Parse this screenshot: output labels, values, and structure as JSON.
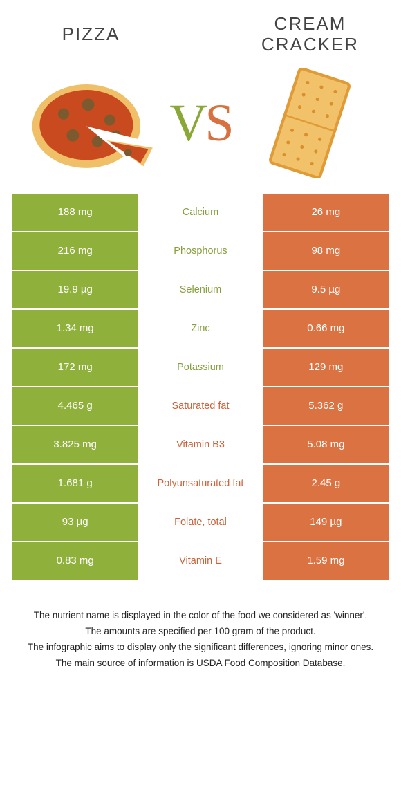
{
  "colors": {
    "left": "#8fb03b",
    "right": "#db7242",
    "leftText": "#859f3c",
    "rightText": "#c9633a",
    "bodyText": "#444444",
    "pizzaCrust": "#f0c069",
    "pizzaSauce": "#c94a1f",
    "pizzaTop": "#7a5a2e",
    "crackerFill": "#f1c26a",
    "crackerEdge": "#e09a36",
    "crackerHole": "#d98f2e"
  },
  "header": {
    "left": "PIZZA",
    "right": "CREAM\nCRACKER",
    "vs_v": "V",
    "vs_s": "S"
  },
  "rows": [
    {
      "nutrient": "Calcium",
      "left": "188 mg",
      "right": "26 mg",
      "winner": "left"
    },
    {
      "nutrient": "Phosphorus",
      "left": "216 mg",
      "right": "98 mg",
      "winner": "left"
    },
    {
      "nutrient": "Selenium",
      "left": "19.9 µg",
      "right": "9.5 µg",
      "winner": "left"
    },
    {
      "nutrient": "Zinc",
      "left": "1.34 mg",
      "right": "0.66 mg",
      "winner": "left"
    },
    {
      "nutrient": "Potassium",
      "left": "172 mg",
      "right": "129 mg",
      "winner": "left"
    },
    {
      "nutrient": "Saturated fat",
      "left": "4.465 g",
      "right": "5.362 g",
      "winner": "right"
    },
    {
      "nutrient": "Vitamin B3",
      "left": "3.825 mg",
      "right": "5.08 mg",
      "winner": "right"
    },
    {
      "nutrient": "Polyunsaturated fat",
      "left": "1.681 g",
      "right": "2.45 g",
      "winner": "right"
    },
    {
      "nutrient": "Folate, total",
      "left": "93 µg",
      "right": "149 µg",
      "winner": "right"
    },
    {
      "nutrient": "Vitamin E",
      "left": "0.83 mg",
      "right": "1.59 mg",
      "winner": "right"
    }
  ],
  "footer": [
    "The nutrient name is displayed in the color of the food we considered as 'winner'.",
    "The amounts are specified per 100 gram of the product.",
    "The infographic aims to display only the significant differences, ignoring minor ones.",
    "The main source of information is USDA Food Composition Database."
  ]
}
